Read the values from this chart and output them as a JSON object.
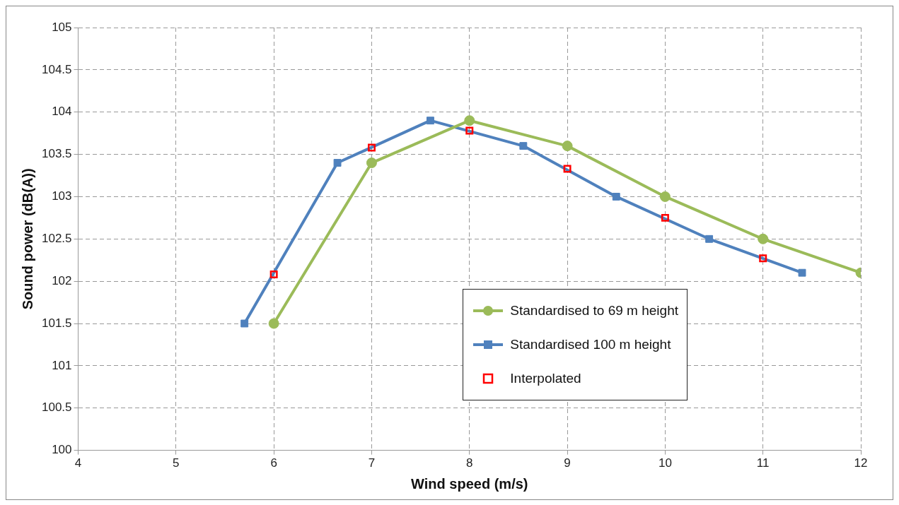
{
  "chart_data": {
    "type": "line",
    "xlabel": "Wind speed (m/s)",
    "ylabel": "Sound power (dB(A))",
    "xlim": [
      4,
      12
    ],
    "xticks": [
      4,
      5,
      6,
      7,
      8,
      9,
      10,
      11,
      12
    ],
    "ylim": [
      100,
      105
    ],
    "yticks": [
      100,
      100.5,
      101,
      101.5,
      102,
      102.5,
      103,
      103.5,
      104,
      104.5,
      105
    ],
    "grid": true,
    "legend": "bottom right",
    "series": [
      {
        "name": "Standardised to 69 m height",
        "type": "line",
        "marker": "circle",
        "color": "#9bbb59",
        "x": [
          6,
          7,
          8,
          9,
          10,
          11,
          12
        ],
        "values": [
          101.5,
          103.4,
          103.9,
          103.6,
          103.0,
          102.5,
          102.1
        ]
      },
      {
        "name": "Standardised 100 m height",
        "type": "line",
        "marker": "square",
        "color": "#4f81bd",
        "x": [
          5.7,
          6.65,
          7.6,
          8.55,
          9.5,
          10.45,
          11.4
        ],
        "values": [
          101.5,
          103.4,
          103.9,
          103.6,
          103.0,
          102.5,
          102.1
        ]
      },
      {
        "name": "Interpolated",
        "type": "scatter",
        "marker": "square",
        "color": "#ff0000",
        "x": [
          6,
          7,
          8,
          9,
          10,
          11
        ],
        "values": [
          102.08,
          103.58,
          103.78,
          103.33,
          102.75,
          102.27
        ]
      }
    ]
  }
}
